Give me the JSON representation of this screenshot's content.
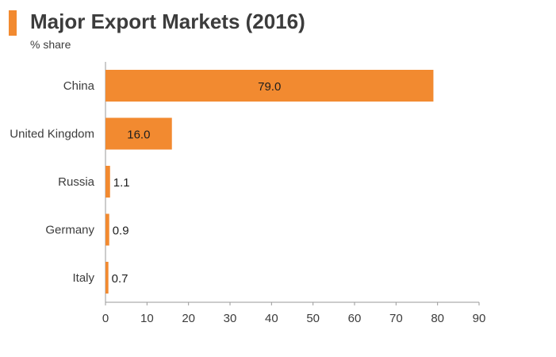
{
  "header": {
    "title": "Major Export Markets (2016)",
    "subtitle": "% share",
    "accent_color": "#f28a30"
  },
  "chart_data": {
    "type": "bar",
    "orientation": "horizontal",
    "title": "Major Export Markets (2016)",
    "ylabel": "% share",
    "xlabel": "",
    "categories": [
      "China",
      "United Kingdom",
      "Russia",
      "Germany",
      "Italy"
    ],
    "values": [
      79.0,
      16.0,
      1.1,
      0.9,
      0.7
    ],
    "value_labels": [
      "79.0",
      "16.0",
      "1.1",
      "0.9",
      "0.7"
    ],
    "xlim": [
      0,
      90
    ],
    "xticks": [
      0,
      10,
      20,
      30,
      40,
      50,
      60,
      70,
      80,
      90
    ],
    "bar_color": "#f28a30",
    "grid": false,
    "legend": "none"
  }
}
